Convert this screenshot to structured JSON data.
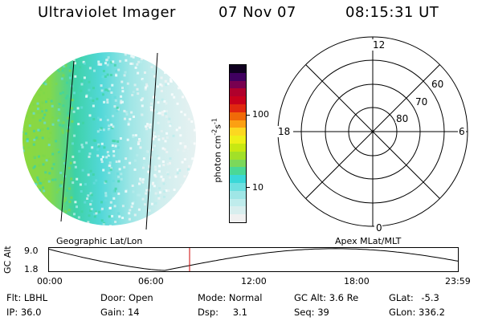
{
  "header": {
    "title": "Ultraviolet Imager",
    "date": "07 Nov 07",
    "time": "08:15:31 UT"
  },
  "image_panel": {
    "label": "Geographic Lat/Lon"
  },
  "colorbar": {
    "unit_main": "photon cm",
    "unit_sup1": "-2",
    "unit_mid": "s",
    "unit_sup2": "-1",
    "ticks": [
      "100",
      "10"
    ],
    "colors": [
      "#f0f0f0",
      "#d8eeee",
      "#bfecec",
      "#9fe6e6",
      "#6fe0e0",
      "#3ad8d8",
      "#4ad896",
      "#7cd85a",
      "#a2e028",
      "#c8e812",
      "#eef018",
      "#fcd820",
      "#fca012",
      "#f06a08",
      "#e02810",
      "#c8001c",
      "#b0002c",
      "#780050",
      "#400060",
      "#100020"
    ]
  },
  "polar": {
    "label": "Apex MLat/MLT",
    "mlt": {
      "top": "12",
      "left": "18",
      "right": "6",
      "bottom": "0"
    },
    "lat": [
      "80",
      "70",
      "60"
    ]
  },
  "timeline": {
    "ylabel": "GC Alt",
    "ymax": "9.0",
    "ymin": "1.8",
    "xticks": [
      "00:00",
      "06:00",
      "12:00",
      "18:00",
      "23:59"
    ],
    "marker_hour": 8.26
  },
  "info": {
    "row1": [
      {
        "key": "Flt:",
        "value": "LBHL"
      },
      {
        "key": "Door:",
        "value": "Open"
      },
      {
        "key": "Mode:",
        "value": "Normal"
      },
      {
        "key": "GC Alt:",
        "value": "3.6 Re"
      },
      {
        "key": "GLat:",
        "value": "-5.3"
      }
    ],
    "row2": [
      {
        "key": "IP:",
        "value": "36.0"
      },
      {
        "key": "Gain:",
        "value": "14"
      },
      {
        "key": "Dsp:",
        "value": "3.1"
      },
      {
        "key": "Seq:",
        "value": "39"
      },
      {
        "key": "GLon:",
        "value": "336.2"
      }
    ]
  }
}
